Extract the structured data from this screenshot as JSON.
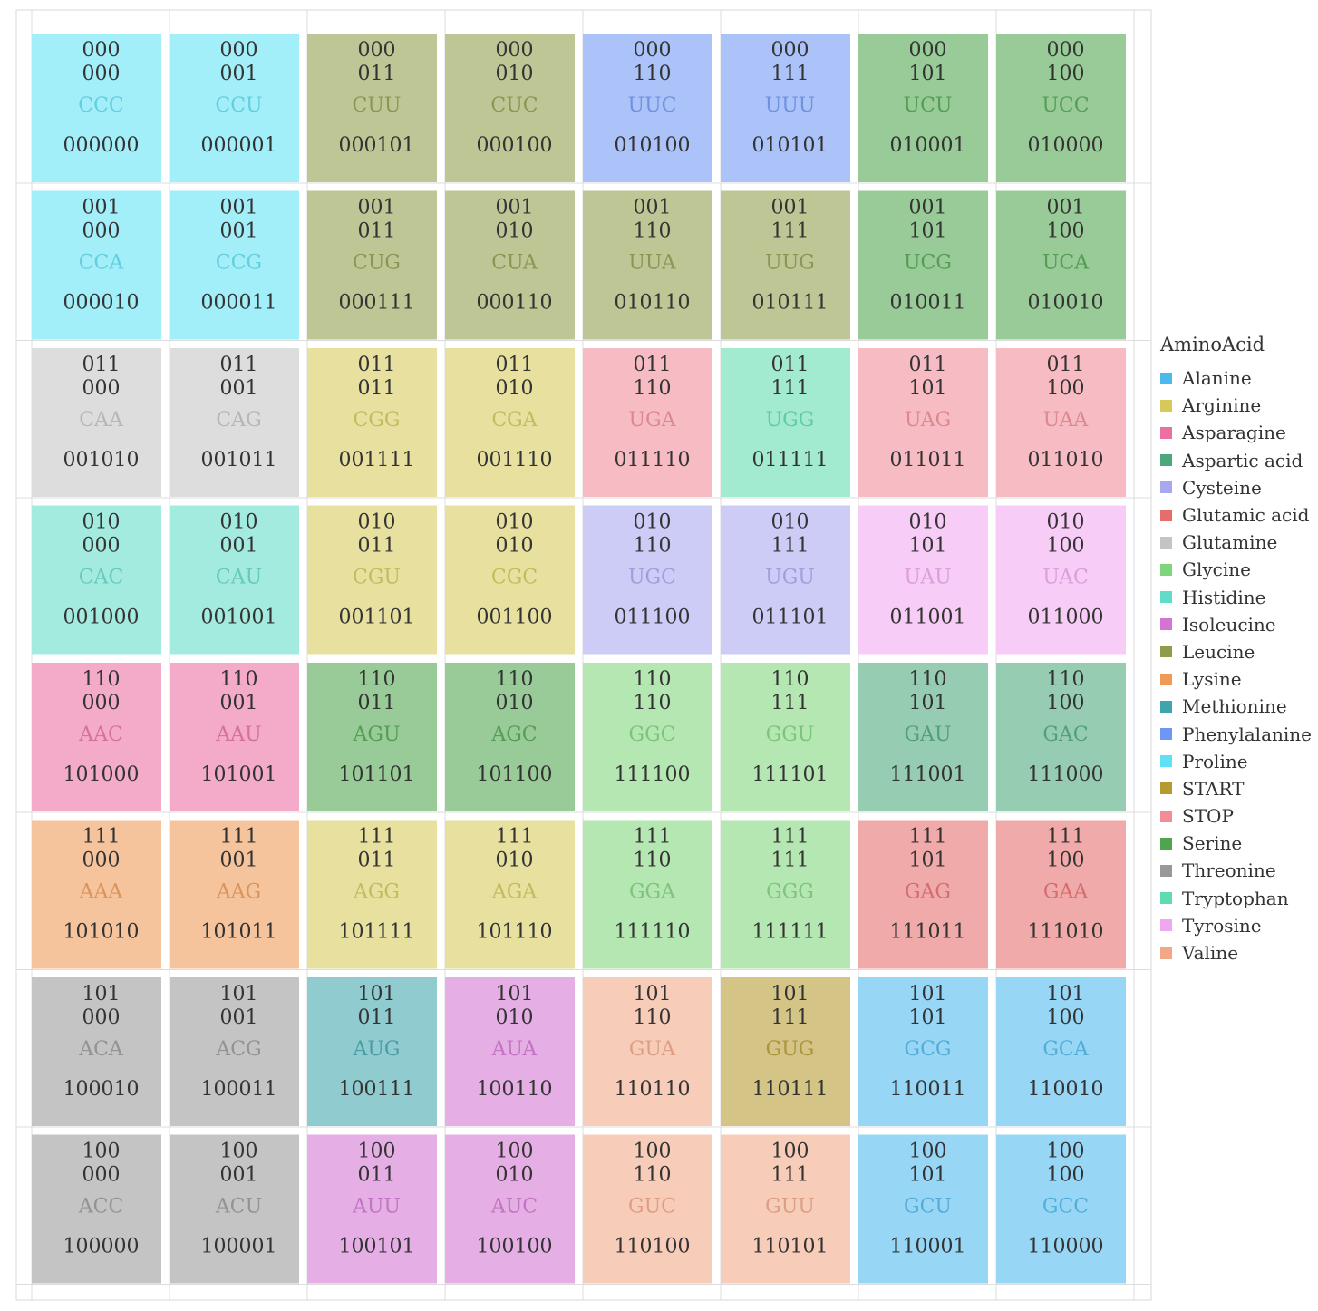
{
  "chart_data": {
    "type": "heatmap",
    "columns": 8,
    "rows": 8,
    "legend_title": "AminoAcid",
    "legend": [
      {
        "name": "Alanine",
        "color": "#4cb9ee"
      },
      {
        "name": "Arginine",
        "color": "#d6c95a"
      },
      {
        "name": "Asparagine",
        "color": "#ec6fa2"
      },
      {
        "name": "Aspartic acid",
        "color": "#4aa87a"
      },
      {
        "name": "Cysteine",
        "color": "#a9a7f2"
      },
      {
        "name": "Glutamic acid",
        "color": "#e76c6c"
      },
      {
        "name": "Glutamine",
        "color": "#c4c4c4"
      },
      {
        "name": "Glycine",
        "color": "#7fd67a"
      },
      {
        "name": "Histidine",
        "color": "#62dcc8"
      },
      {
        "name": "Isoleucine",
        "color": "#d373d3"
      },
      {
        "name": "Leucine",
        "color": "#909c4a"
      },
      {
        "name": "Lysine",
        "color": "#f09a55"
      },
      {
        "name": "Methionine",
        "color": "#3fa5ad"
      },
      {
        "name": "Phenylalanine",
        "color": "#6e97f5"
      },
      {
        "name": "Proline",
        "color": "#5fe1f5"
      },
      {
        "name": "START",
        "color": "#b59a2f"
      },
      {
        "name": "STOP",
        "color": "#f28c97"
      },
      {
        "name": "Serine",
        "color": "#4ea54e"
      },
      {
        "name": "Threonine",
        "color": "#999999"
      },
      {
        "name": "Tryptophan",
        "color": "#5fdcae"
      },
      {
        "name": "Tyrosine",
        "color": "#f1a7ef"
      },
      {
        "name": "Valine",
        "color": "#f2a785"
      }
    ],
    "cells": [
      [
        {
          "row_code": "000",
          "col_code": "000",
          "codon": "CCC",
          "binary": "000000",
          "amino": "Proline"
        },
        {
          "row_code": "000",
          "col_code": "001",
          "codon": "CCU",
          "binary": "000001",
          "amino": "Proline"
        },
        {
          "row_code": "000",
          "col_code": "011",
          "codon": "CUU",
          "binary": "000101",
          "amino": "Leucine"
        },
        {
          "row_code": "000",
          "col_code": "010",
          "codon": "CUC",
          "binary": "000100",
          "amino": "Leucine"
        },
        {
          "row_code": "000",
          "col_code": "110",
          "codon": "UUC",
          "binary": "010100",
          "amino": "Phenylalanine"
        },
        {
          "row_code": "000",
          "col_code": "111",
          "codon": "UUU",
          "binary": "010101",
          "amino": "Phenylalanine"
        },
        {
          "row_code": "000",
          "col_code": "101",
          "codon": "UCU",
          "binary": "010001",
          "amino": "Serine"
        },
        {
          "row_code": "000",
          "col_code": "100",
          "codon": "UCC",
          "binary": "010000",
          "amino": "Serine"
        }
      ],
      [
        {
          "row_code": "001",
          "col_code": "000",
          "codon": "CCA",
          "binary": "000010",
          "amino": "Proline"
        },
        {
          "row_code": "001",
          "col_code": "001",
          "codon": "CCG",
          "binary": "000011",
          "amino": "Proline"
        },
        {
          "row_code": "001",
          "col_code": "011",
          "codon": "CUG",
          "binary": "000111",
          "amino": "Leucine"
        },
        {
          "row_code": "001",
          "col_code": "010",
          "codon": "CUA",
          "binary": "000110",
          "amino": "Leucine"
        },
        {
          "row_code": "001",
          "col_code": "110",
          "codon": "UUA",
          "binary": "010110",
          "amino": "Leucine"
        },
        {
          "row_code": "001",
          "col_code": "111",
          "codon": "UUG",
          "binary": "010111",
          "amino": "Leucine"
        },
        {
          "row_code": "001",
          "col_code": "101",
          "codon": "UCG",
          "binary": "010011",
          "amino": "Serine"
        },
        {
          "row_code": "001",
          "col_code": "100",
          "codon": "UCA",
          "binary": "010010",
          "amino": "Serine"
        }
      ],
      [
        {
          "row_code": "011",
          "col_code": "000",
          "codon": "CAA",
          "binary": "001010",
          "amino": "Glutamine"
        },
        {
          "row_code": "011",
          "col_code": "001",
          "codon": "CAG",
          "binary": "001011",
          "amino": "Glutamine"
        },
        {
          "row_code": "011",
          "col_code": "011",
          "codon": "CGG",
          "binary": "001111",
          "amino": "Arginine"
        },
        {
          "row_code": "011",
          "col_code": "010",
          "codon": "CGA",
          "binary": "001110",
          "amino": "Arginine"
        },
        {
          "row_code": "011",
          "col_code": "110",
          "codon": "UGA",
          "binary": "011110",
          "amino": "STOP"
        },
        {
          "row_code": "011",
          "col_code": "111",
          "codon": "UGG",
          "binary": "011111",
          "amino": "Tryptophan"
        },
        {
          "row_code": "011",
          "col_code": "101",
          "codon": "UAG",
          "binary": "011011",
          "amino": "STOP"
        },
        {
          "row_code": "011",
          "col_code": "100",
          "codon": "UAA",
          "binary": "011010",
          "amino": "STOP"
        }
      ],
      [
        {
          "row_code": "010",
          "col_code": "000",
          "codon": "CAC",
          "binary": "001000",
          "amino": "Histidine"
        },
        {
          "row_code": "010",
          "col_code": "001",
          "codon": "CAU",
          "binary": "001001",
          "amino": "Histidine"
        },
        {
          "row_code": "010",
          "col_code": "011",
          "codon": "CGU",
          "binary": "001101",
          "amino": "Arginine"
        },
        {
          "row_code": "010",
          "col_code": "010",
          "codon": "CGC",
          "binary": "001100",
          "amino": "Arginine"
        },
        {
          "row_code": "010",
          "col_code": "110",
          "codon": "UGC",
          "binary": "011100",
          "amino": "Cysteine"
        },
        {
          "row_code": "010",
          "col_code": "111",
          "codon": "UGU",
          "binary": "011101",
          "amino": "Cysteine"
        },
        {
          "row_code": "010",
          "col_code": "101",
          "codon": "UAU",
          "binary": "011001",
          "amino": "Tyrosine"
        },
        {
          "row_code": "010",
          "col_code": "100",
          "codon": "UAC",
          "binary": "011000",
          "amino": "Tyrosine"
        }
      ],
      [
        {
          "row_code": "110",
          "col_code": "000",
          "codon": "AAC",
          "binary": "101000",
          "amino": "Asparagine"
        },
        {
          "row_code": "110",
          "col_code": "001",
          "codon": "AAU",
          "binary": "101001",
          "amino": "Asparagine"
        },
        {
          "row_code": "110",
          "col_code": "011",
          "codon": "AGU",
          "binary": "101101",
          "amino": "Serine"
        },
        {
          "row_code": "110",
          "col_code": "010",
          "codon": "AGC",
          "binary": "101100",
          "amino": "Serine"
        },
        {
          "row_code": "110",
          "col_code": "110",
          "codon": "GGC",
          "binary": "111100",
          "amino": "Glycine"
        },
        {
          "row_code": "110",
          "col_code": "111",
          "codon": "GGU",
          "binary": "111101",
          "amino": "Glycine"
        },
        {
          "row_code": "110",
          "col_code": "101",
          "codon": "GAU",
          "binary": "111001",
          "amino": "Aspartic acid"
        },
        {
          "row_code": "110",
          "col_code": "100",
          "codon": "GAC",
          "binary": "111000",
          "amino": "Aspartic acid"
        }
      ],
      [
        {
          "row_code": "111",
          "col_code": "000",
          "codon": "AAA",
          "binary": "101010",
          "amino": "Lysine"
        },
        {
          "row_code": "111",
          "col_code": "001",
          "codon": "AAG",
          "binary": "101011",
          "amino": "Lysine"
        },
        {
          "row_code": "111",
          "col_code": "011",
          "codon": "AGG",
          "binary": "101111",
          "amino": "Arginine"
        },
        {
          "row_code": "111",
          "col_code": "010",
          "codon": "AGA",
          "binary": "101110",
          "amino": "Arginine"
        },
        {
          "row_code": "111",
          "col_code": "110",
          "codon": "GGA",
          "binary": "111110",
          "amino": "Glycine"
        },
        {
          "row_code": "111",
          "col_code": "111",
          "codon": "GGG",
          "binary": "111111",
          "amino": "Glycine"
        },
        {
          "row_code": "111",
          "col_code": "101",
          "codon": "GAG",
          "binary": "111011",
          "amino": "Glutamic acid"
        },
        {
          "row_code": "111",
          "col_code": "100",
          "codon": "GAA",
          "binary": "111010",
          "amino": "Glutamic acid"
        }
      ],
      [
        {
          "row_code": "101",
          "col_code": "000",
          "codon": "ACA",
          "binary": "100010",
          "amino": "Threonine"
        },
        {
          "row_code": "101",
          "col_code": "001",
          "codon": "ACG",
          "binary": "100011",
          "amino": "Threonine"
        },
        {
          "row_code": "101",
          "col_code": "011",
          "codon": "AUG",
          "binary": "100111",
          "amino": "Methionine"
        },
        {
          "row_code": "101",
          "col_code": "010",
          "codon": "AUA",
          "binary": "100110",
          "amino": "Isoleucine"
        },
        {
          "row_code": "101",
          "col_code": "110",
          "codon": "GUA",
          "binary": "110110",
          "amino": "Valine"
        },
        {
          "row_code": "101",
          "col_code": "111",
          "codon": "GUG",
          "binary": "110111",
          "amino": "START"
        },
        {
          "row_code": "101",
          "col_code": "101",
          "codon": "GCG",
          "binary": "110011",
          "amino": "Alanine"
        },
        {
          "row_code": "101",
          "col_code": "100",
          "codon": "GCA",
          "binary": "110010",
          "amino": "Alanine"
        }
      ],
      [
        {
          "row_code": "100",
          "col_code": "000",
          "codon": "ACC",
          "binary": "100000",
          "amino": "Threonine"
        },
        {
          "row_code": "100",
          "col_code": "001",
          "codon": "ACU",
          "binary": "100001",
          "amino": "Threonine"
        },
        {
          "row_code": "100",
          "col_code": "011",
          "codon": "AUU",
          "binary": "100101",
          "amino": "Isoleucine"
        },
        {
          "row_code": "100",
          "col_code": "010",
          "codon": "AUC",
          "binary": "100100",
          "amino": "Isoleucine"
        },
        {
          "row_code": "100",
          "col_code": "110",
          "codon": "GUC",
          "binary": "110100",
          "amino": "Valine"
        },
        {
          "row_code": "100",
          "col_code": "111",
          "codon": "GUU",
          "binary": "110101",
          "amino": "Valine"
        },
        {
          "row_code": "100",
          "col_code": "101",
          "codon": "GCU",
          "binary": "110001",
          "amino": "Alanine"
        },
        {
          "row_code": "100",
          "col_code": "100",
          "codon": "GCC",
          "binary": "110000",
          "amino": "Alanine"
        }
      ]
    ]
  }
}
